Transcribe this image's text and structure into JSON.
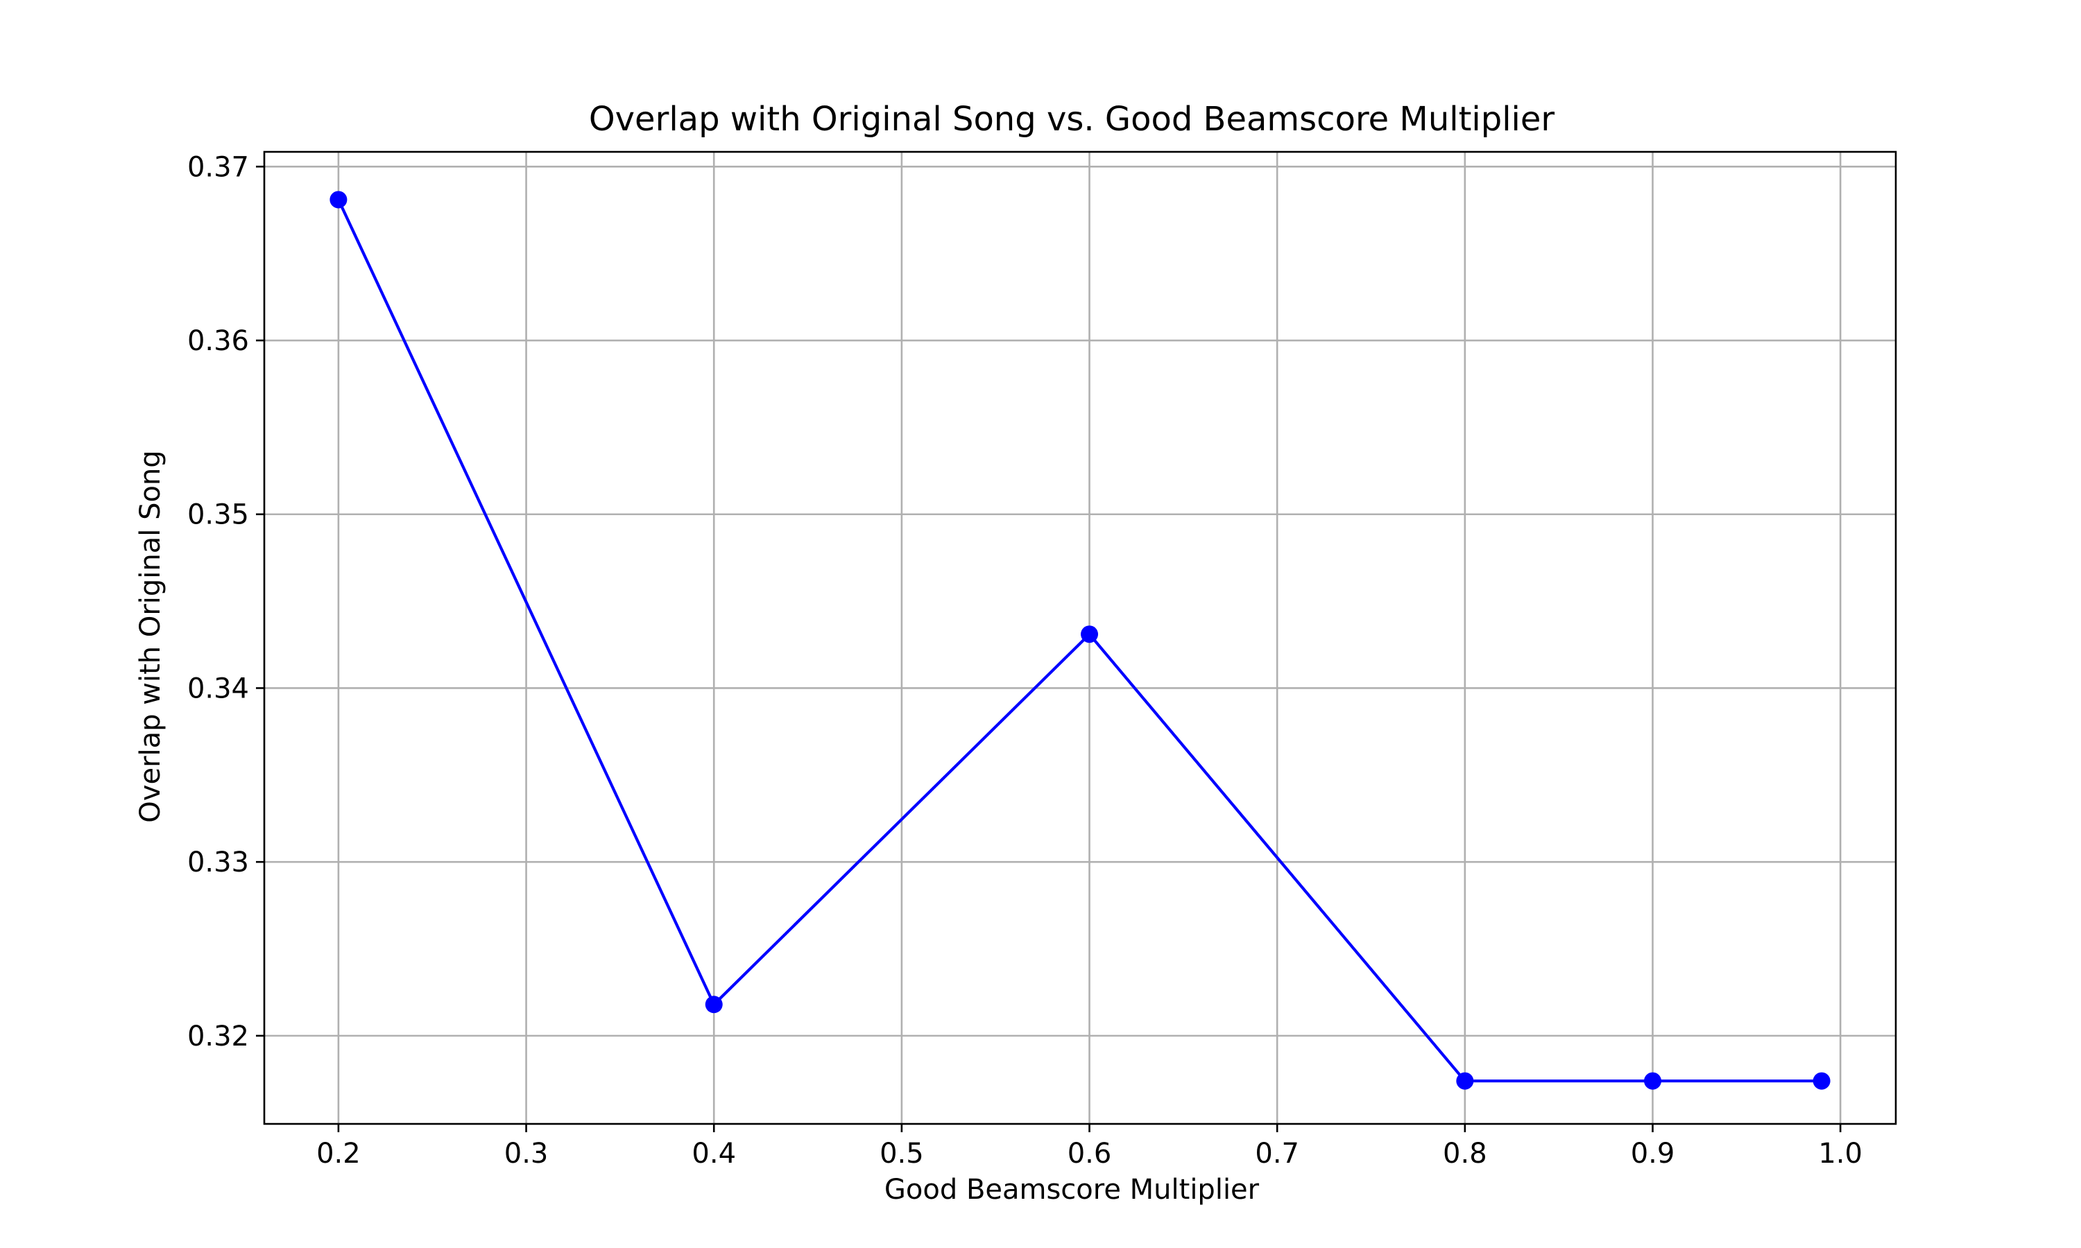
{
  "chart_data": {
    "type": "line",
    "title": "Overlap with Original Song vs. Good Beamscore Multiplier",
    "xlabel": "Good Beamscore Multiplier",
    "ylabel": "Overlap with Original Song",
    "x": [
      0.2,
      0.4,
      0.6,
      0.8,
      0.9,
      0.99
    ],
    "series": [
      {
        "values": [
          0.3681,
          0.3218,
          0.3431,
          0.3174,
          0.3174,
          0.3174
        ],
        "color": "#0000ff",
        "marker": "circle"
      }
    ],
    "xlim": [
      0.1605,
      1.0295
    ],
    "ylim": [
      0.31493,
      0.37085
    ],
    "xticks": [
      "0.2",
      "0.3",
      "0.4",
      "0.5",
      "0.6",
      "0.7",
      "0.8",
      "0.9",
      "1.0"
    ],
    "yticks": [
      "0.32",
      "0.33",
      "0.34",
      "0.35",
      "0.36",
      "0.37"
    ],
    "grid": true,
    "legend": "none"
  }
}
